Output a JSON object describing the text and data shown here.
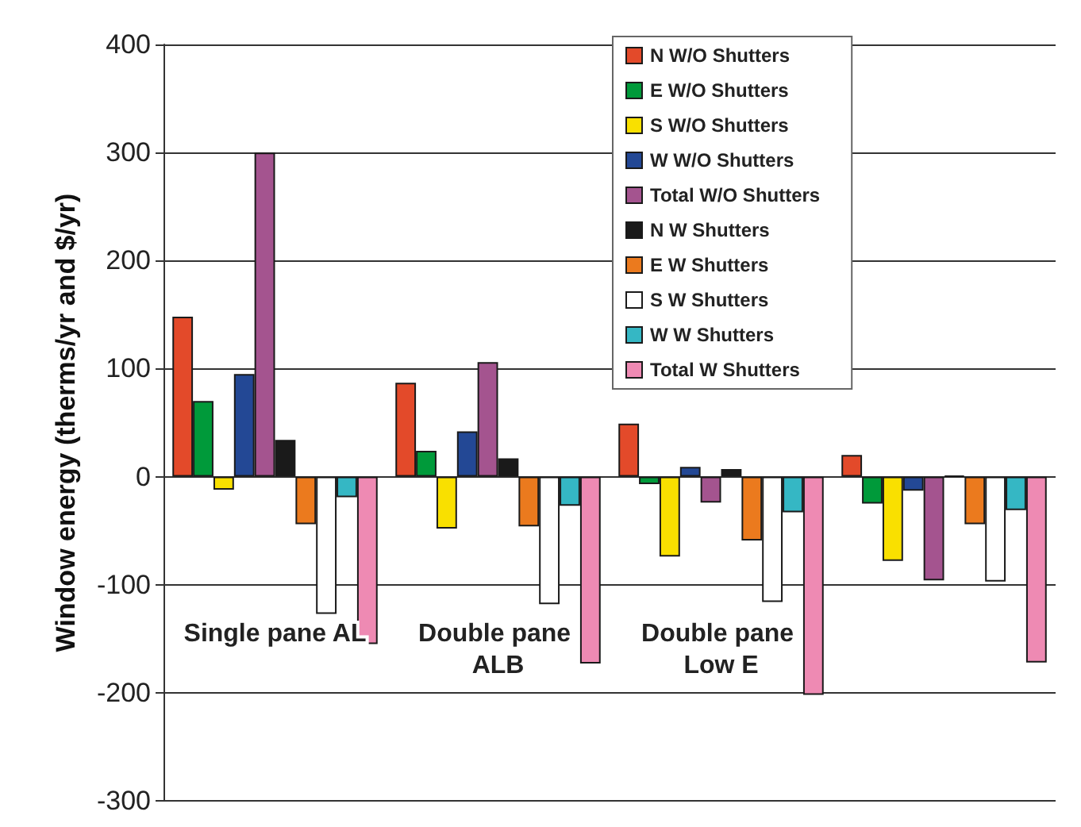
{
  "chart_data": {
    "type": "bar",
    "ylabel": "Window energy (therms/yr and $/yr)",
    "categories": [
      "Single pane AL",
      "Double pane ALB",
      "Double pane Low E",
      null
    ],
    "series": [
      {
        "name": "N W/O Shutters",
        "color": "#e34a2a",
        "values": [
          148,
          87,
          49,
          20
        ]
      },
      {
        "name": "E W/O Shutters",
        "color": "#009a3a",
        "values": [
          70,
          24,
          -7,
          -25
        ]
      },
      {
        "name": "S W/O Shutters",
        "color": "#f9e000",
        "values": [
          -12,
          -48,
          -74,
          -78
        ]
      },
      {
        "name": "W W/O Shutters",
        "color": "#234895",
        "values": [
          95,
          42,
          9,
          -13
        ]
      },
      {
        "name": "Total W/O Shutters",
        "color": "#a4548f",
        "values": [
          300,
          106,
          -24,
          -96
        ]
      },
      {
        "name": "N W Shutters",
        "color": "#1a1a1a",
        "values": [
          34,
          17,
          7,
          1
        ]
      },
      {
        "name": "E W Shutters",
        "color": "#eb7a1e",
        "values": [
          -44,
          -46,
          -59,
          -44
        ]
      },
      {
        "name": "S W Shutters",
        "color": "#ffffff",
        "values": [
          -127,
          -118,
          -116,
          -97
        ]
      },
      {
        "name": "W W Shutters",
        "color": "#35b7c4",
        "values": [
          -19,
          -27,
          -33,
          -31
        ]
      },
      {
        "name": "Total W Shutters",
        "color": "#ee8ab3",
        "values": [
          -155,
          -173,
          -202,
          -172
        ]
      }
    ],
    "ylim": [
      -300,
      400
    ],
    "yticks": [
      -300,
      -200,
      -100,
      0,
      100,
      200,
      300,
      400
    ],
    "grid": "y",
    "legend": "top"
  }
}
